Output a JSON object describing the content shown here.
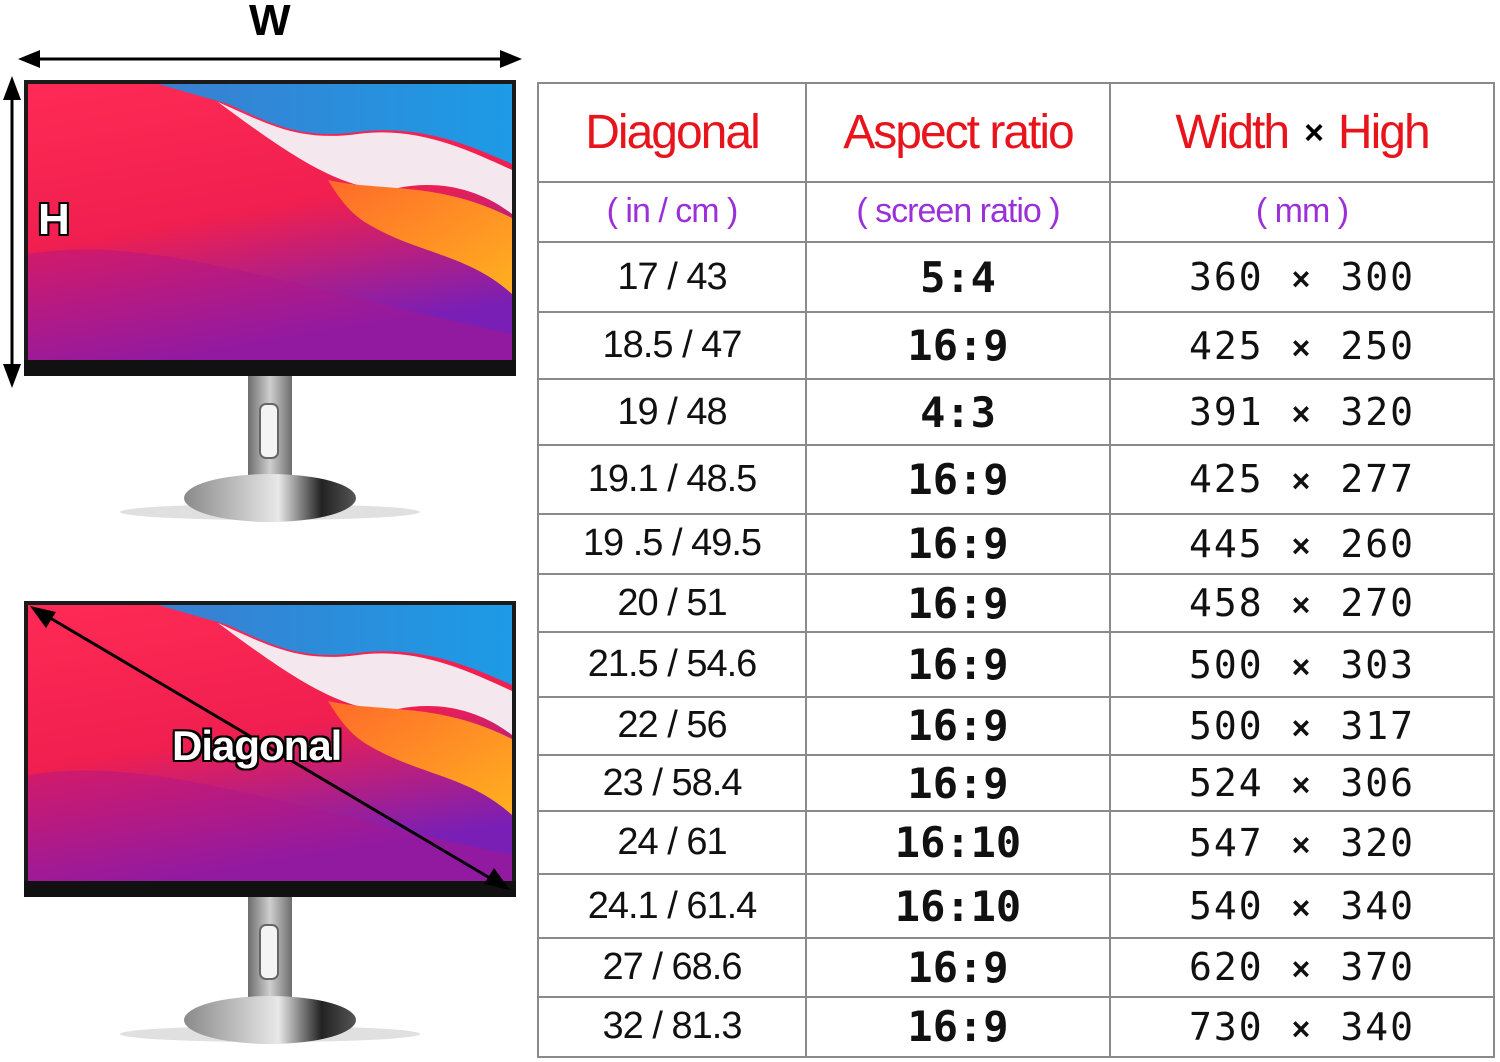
{
  "illustration": {
    "width_label": "W",
    "height_label": "H",
    "diagonal_label": "Diagonal"
  },
  "table": {
    "headers": {
      "diagonal": "Diagonal",
      "aspect": "Aspect ratio",
      "width": "Width",
      "times": "×",
      "high": "High"
    },
    "units": {
      "diagonal": "( in / cm )",
      "aspect": "( screen ratio )",
      "size": "( mm )"
    },
    "rows": [
      {
        "diagonal": "17 / 43",
        "ratio": "5:4",
        "width": "360",
        "times": "×",
        "height": "300"
      },
      {
        "diagonal": "18.5 / 47",
        "ratio": "16:9",
        "width": "425",
        "times": "×",
        "height": "250"
      },
      {
        "diagonal": "19 / 48",
        "ratio": "4:3",
        "width": "391",
        "times": "×",
        "height": "320"
      },
      {
        "diagonal": "19.1 / 48.5",
        "ratio": "16:9",
        "width": "425",
        "times": "×",
        "height": "277"
      },
      {
        "diagonal": "19 .5 / 49.5",
        "ratio": "16:9",
        "width": "445",
        "times": "×",
        "height": "260"
      },
      {
        "diagonal": "20 / 51",
        "ratio": "16:9",
        "width": "458",
        "times": "×",
        "height": "270"
      },
      {
        "diagonal": "21.5 / 54.6",
        "ratio": "16:9",
        "width": "500",
        "times": "×",
        "height": "303"
      },
      {
        "diagonal": "22 / 56",
        "ratio": "16:9",
        "width": "500",
        "times": "×",
        "height": "317"
      },
      {
        "diagonal": "23 / 58.4",
        "ratio": "16:9",
        "width": "524",
        "times": "×",
        "height": "306"
      },
      {
        "diagonal": "24 / 61",
        "ratio": "16:10",
        "width": "547",
        "times": "×",
        "height": "320"
      },
      {
        "diagonal": "24.1 / 61.4",
        "ratio": "16:10",
        "width": "540",
        "times": "×",
        "height": "340"
      },
      {
        "diagonal": "27 /  68.6",
        "ratio": "16:9",
        "width": "620",
        "times": "×",
        "height": "370"
      },
      {
        "diagonal": "32 / 81.3",
        "ratio": "16:9",
        "width": "730",
        "times": "×",
        "height": "340"
      }
    ]
  },
  "colors": {
    "header_red": "#e8141c",
    "unit_purple": "#9b30d9",
    "grid_gray": "#8a8a8a"
  }
}
